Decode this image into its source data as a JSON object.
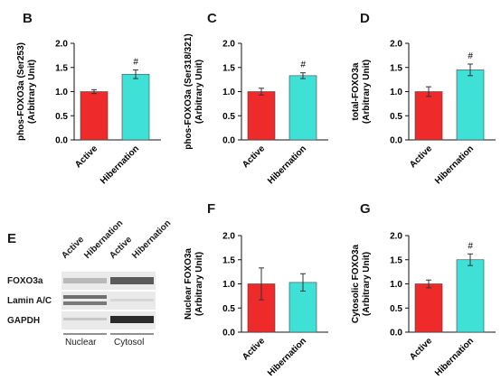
{
  "figure_letters": {
    "E": "E"
  },
  "colors": {
    "active": "#ee2a2a",
    "hibernation": "#3fe0d6"
  },
  "chart_data": [
    {
      "panel": "B",
      "type": "bar",
      "categories": [
        "Active",
        "Hibernation"
      ],
      "values": [
        1.0,
        1.36
      ],
      "errors": [
        0.04,
        0.09
      ],
      "ylabel_lines": [
        "phos-FOXO3a (Ser253)",
        "(Arbitrary Unit)"
      ],
      "yticks": [
        "0.0",
        "0.5",
        "1.0",
        "1.5",
        "2.0"
      ],
      "ylim": [
        0,
        2.0
      ],
      "annotations": [
        "",
        "#"
      ]
    },
    {
      "panel": "C",
      "type": "bar",
      "categories": [
        "Active",
        "Hibernation"
      ],
      "values": [
        1.0,
        1.33
      ],
      "errors": [
        0.07,
        0.06
      ],
      "ylabel_lines": [
        "phos-FOXO3a (Ser318/321)",
        "(Arbitrary Unit)"
      ],
      "yticks": [
        "0.0",
        "0.5",
        "1.0",
        "1.5",
        "2.0"
      ],
      "ylim": [
        0,
        2.0
      ],
      "annotations": [
        "",
        "#"
      ]
    },
    {
      "panel": "D",
      "type": "bar",
      "categories": [
        "Active",
        "Hibernation"
      ],
      "values": [
        1.0,
        1.45
      ],
      "errors": [
        0.1,
        0.12
      ],
      "ylabel_lines": [
        "total-FOXO3a",
        "(Arbitrary Unit)"
      ],
      "yticks": [
        "0.0",
        "0.5",
        "1.0",
        "1.5",
        "2.0"
      ],
      "ylim": [
        0,
        2.0
      ],
      "annotations": [
        "",
        "#"
      ]
    },
    {
      "panel": "F",
      "type": "bar",
      "categories": [
        "Active",
        "Hibernation"
      ],
      "values": [
        1.0,
        1.03
      ],
      "errors": [
        0.33,
        0.18
      ],
      "ylabel_lines": [
        "Nuclear FOXO3a",
        "(Arbitrary Unit)"
      ],
      "yticks": [
        "0.0",
        "0.5",
        "1.0",
        "1.5",
        "2.0"
      ],
      "ylim": [
        0,
        2.0
      ],
      "annotations": [
        "",
        ""
      ]
    },
    {
      "panel": "G",
      "type": "bar",
      "categories": [
        "Active",
        "Hibernation"
      ],
      "values": [
        1.0,
        1.5
      ],
      "errors": [
        0.08,
        0.12
      ],
      "ylabel_lines": [
        "Cytosolic FOXO3a",
        "(Arbitrary Unit)"
      ],
      "yticks": [
        "0.0",
        "0.5",
        "1.0",
        "1.5",
        "2.0"
      ],
      "ylim": [
        0,
        2.0
      ],
      "annotations": [
        "",
        "#"
      ]
    }
  ],
  "blot": {
    "columns": [
      "Active",
      "Hibernation",
      "Active",
      "Hibernation"
    ],
    "rows": [
      "FOXO3a",
      "Lamin A/C",
      "GAPDH"
    ],
    "fractions": [
      "Nuclear",
      "Cytosol"
    ]
  }
}
